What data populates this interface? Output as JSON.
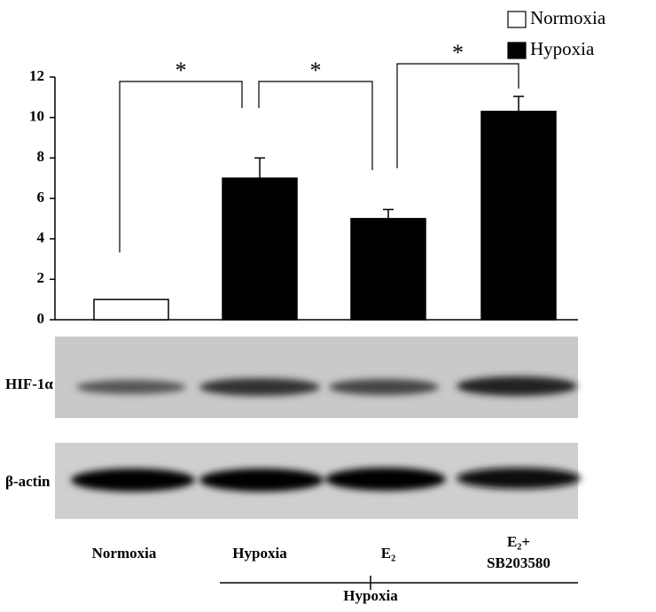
{
  "chart_data": {
    "type": "bar",
    "categories": [
      "Normoxia",
      "Hypoxia",
      "E₂",
      "E₂+ SB203580"
    ],
    "series": [
      {
        "name": "Normoxia",
        "color": "#ffffff",
        "values": [
          1,
          null,
          null,
          null
        ],
        "errors": [
          null,
          null,
          null,
          null
        ]
      },
      {
        "name": "Hypoxia",
        "color": "#000000",
        "values": [
          null,
          7,
          5,
          10.3
        ],
        "errors": [
          null,
          1.0,
          0.45,
          0.75
        ]
      }
    ],
    "ylim": [
      0,
      12
    ],
    "yticks": [
      0,
      2,
      4,
      6,
      8,
      10,
      12
    ],
    "annotations": [
      "*",
      "*",
      "*"
    ],
    "blot_labels": [
      "HIF-1α",
      "β-actin"
    ],
    "group_label": "Hypoxia"
  }
}
